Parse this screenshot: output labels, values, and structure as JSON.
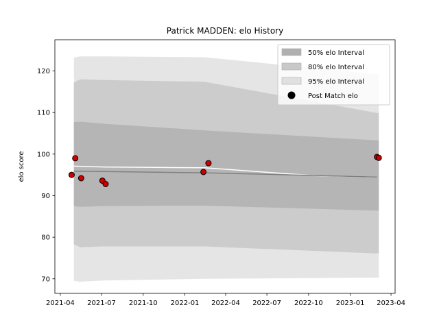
{
  "chart_data": {
    "type": "area",
    "title": "Patrick MADDEN: elo History",
    "ylabel": "elo score",
    "xlabel": "",
    "x_ticks": [
      "2021-04",
      "2021-07",
      "2021-10",
      "2022-01",
      "2022-04",
      "2022-07",
      "2022-10",
      "2023-01",
      "2023-04"
    ],
    "y_ticks": [
      70,
      80,
      90,
      100,
      110,
      120
    ],
    "xlim": [
      "2021-03-20",
      "2023-04-10"
    ],
    "ylim": [
      66.5,
      127.5
    ],
    "grid": false,
    "legend_position": "top-right",
    "legend": [
      {
        "label": "50% elo Interval",
        "color": "#b0b0b0",
        "kind": "patch"
      },
      {
        "label": "80% elo Interval",
        "color": "#c8c8c8",
        "kind": "patch"
      },
      {
        "label": "95% elo Interval",
        "color": "#e0e0e0",
        "kind": "patch"
      },
      {
        "label": "Post Match elo",
        "color": "#000000",
        "kind": "marker"
      }
    ],
    "bands": {
      "x": [
        "2021-05-01",
        "2021-05-15",
        "2021-07-05",
        "2022-02-13",
        "2023-03-01",
        "2023-03-05"
      ],
      "p95": {
        "upper": [
          123.2,
          123.5,
          123.5,
          123.3,
          119.2,
          119.2
        ],
        "lower": [
          69.5,
          69.3,
          69.6,
          70.0,
          70.3,
          70.3
        ]
      },
      "p80": {
        "upper": [
          117.2,
          118.0,
          117.8,
          117.4,
          109.9,
          109.9
        ],
        "lower": [
          78.3,
          77.6,
          77.8,
          77.8,
          76.1,
          76.1
        ]
      },
      "p50": {
        "upper": [
          107.7,
          107.8,
          107.3,
          105.7,
          103.3,
          103.3
        ],
        "lower": [
          87.5,
          87.3,
          87.5,
          87.6,
          86.4,
          86.4
        ]
      }
    },
    "series": [
      {
        "name": "",
        "kind": "line",
        "color": "#ffffff",
        "x": [
          "2021-05-01",
          "2021-07-05",
          "2022-02-13",
          "2022-10-15",
          "2023-03-01"
        ],
        "y": [
          97.1,
          96.9,
          96.7,
          94.8,
          94.5
        ]
      },
      {
        "name": "",
        "kind": "line",
        "color": "#808080",
        "x": [
          "2021-05-01",
          "2021-07-05",
          "2022-02-13",
          "2023-03-01"
        ],
        "y": [
          95.9,
          95.8,
          95.5,
          94.5
        ]
      },
      {
        "name": "Post Match elo",
        "kind": "scatter",
        "color": "#cc0000",
        "x": [
          "2021-04-26",
          "2021-05-04",
          "2021-05-17",
          "2021-07-03",
          "2021-07-10",
          "2022-02-11",
          "2022-02-22",
          "2023-03-01",
          "2023-03-05"
        ],
        "y": [
          95.0,
          99.0,
          94.2,
          93.6,
          92.8,
          95.7,
          97.8,
          99.3,
          99.1
        ]
      }
    ]
  }
}
